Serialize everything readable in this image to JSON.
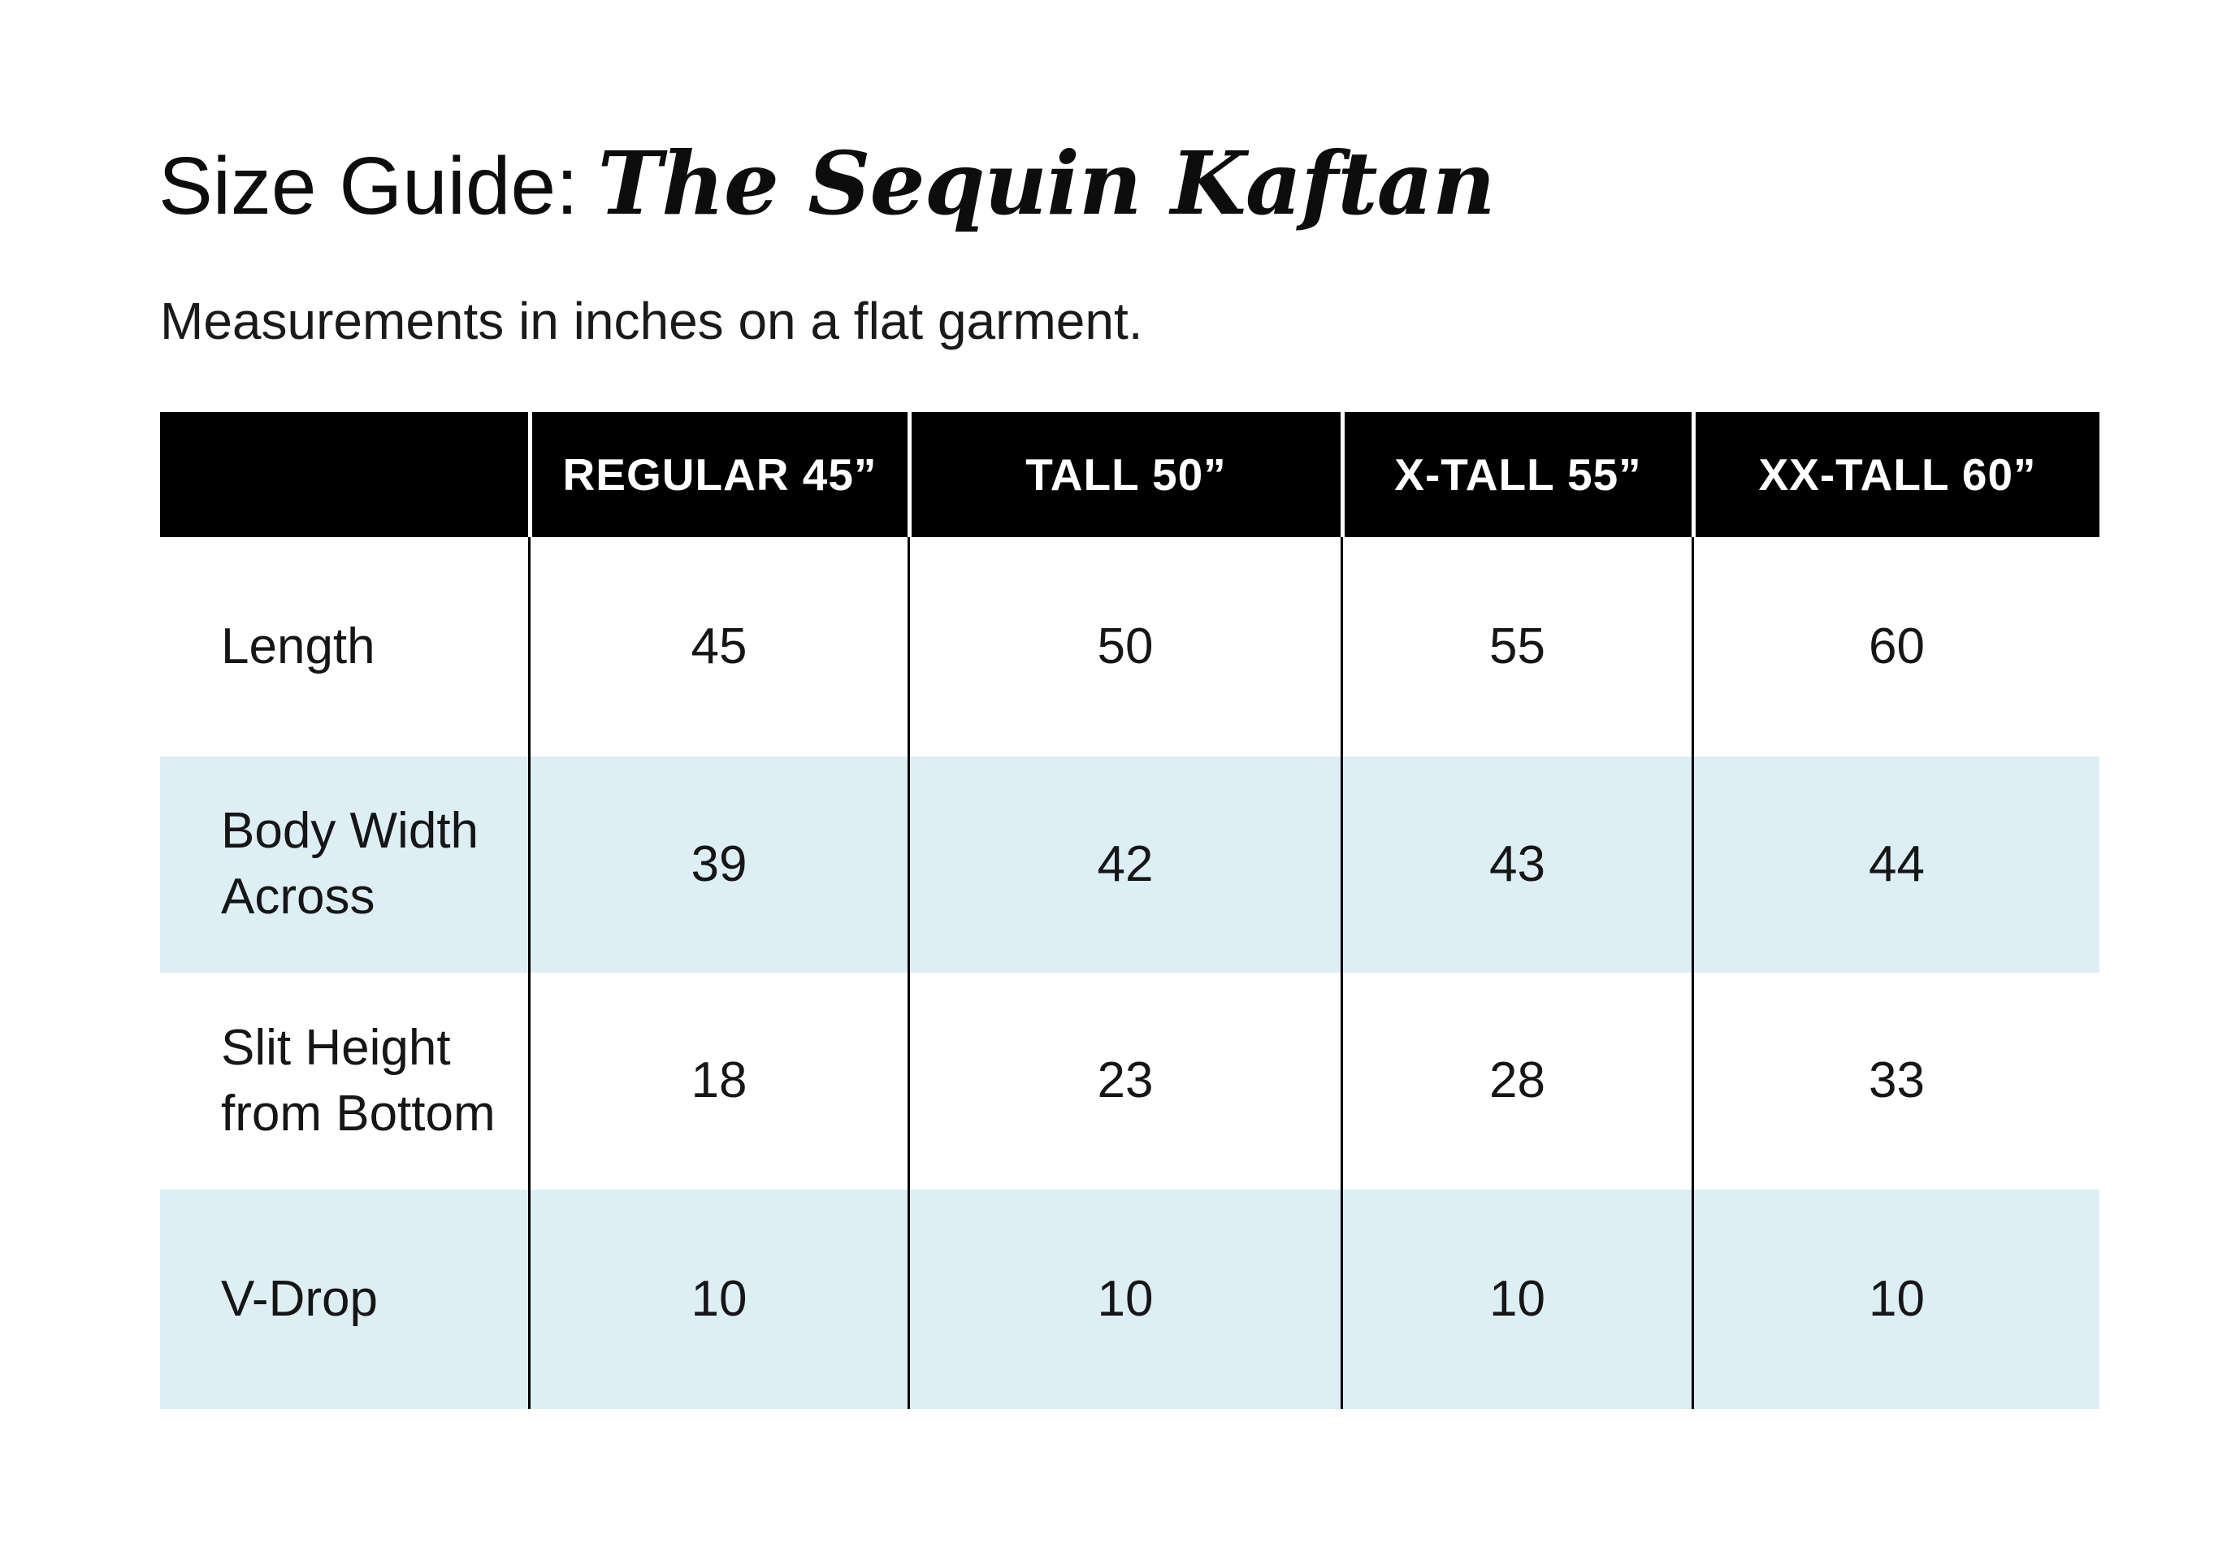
{
  "header": {
    "title_prefix": "Size Guide:",
    "title_product": "The Sequin Kaftan",
    "subtitle": "Measurements in inches on a flat garment."
  },
  "size_table": {
    "corner_label": "",
    "columns": [
      "REGULAR 45”",
      "TALL 50”",
      "X-TALL 55”",
      "XX-TALL 60”"
    ],
    "rows": [
      {
        "label": "Length",
        "values": [
          "45",
          "50",
          "55",
          "60"
        ]
      },
      {
        "label": "Body Width Across",
        "values": [
          "39",
          "42",
          "43",
          "44"
        ]
      },
      {
        "label": "Slit Height from Bottom",
        "values": [
          "18",
          "23",
          "28",
          "33"
        ]
      },
      {
        "label": "V-Drop",
        "values": [
          "10",
          "10",
          "10",
          "10"
        ]
      }
    ]
  },
  "colors": {
    "header_bg": "#000000",
    "header_text": "#ffffff",
    "alt_row_bg": "#ddeef5",
    "text": "#161616"
  }
}
